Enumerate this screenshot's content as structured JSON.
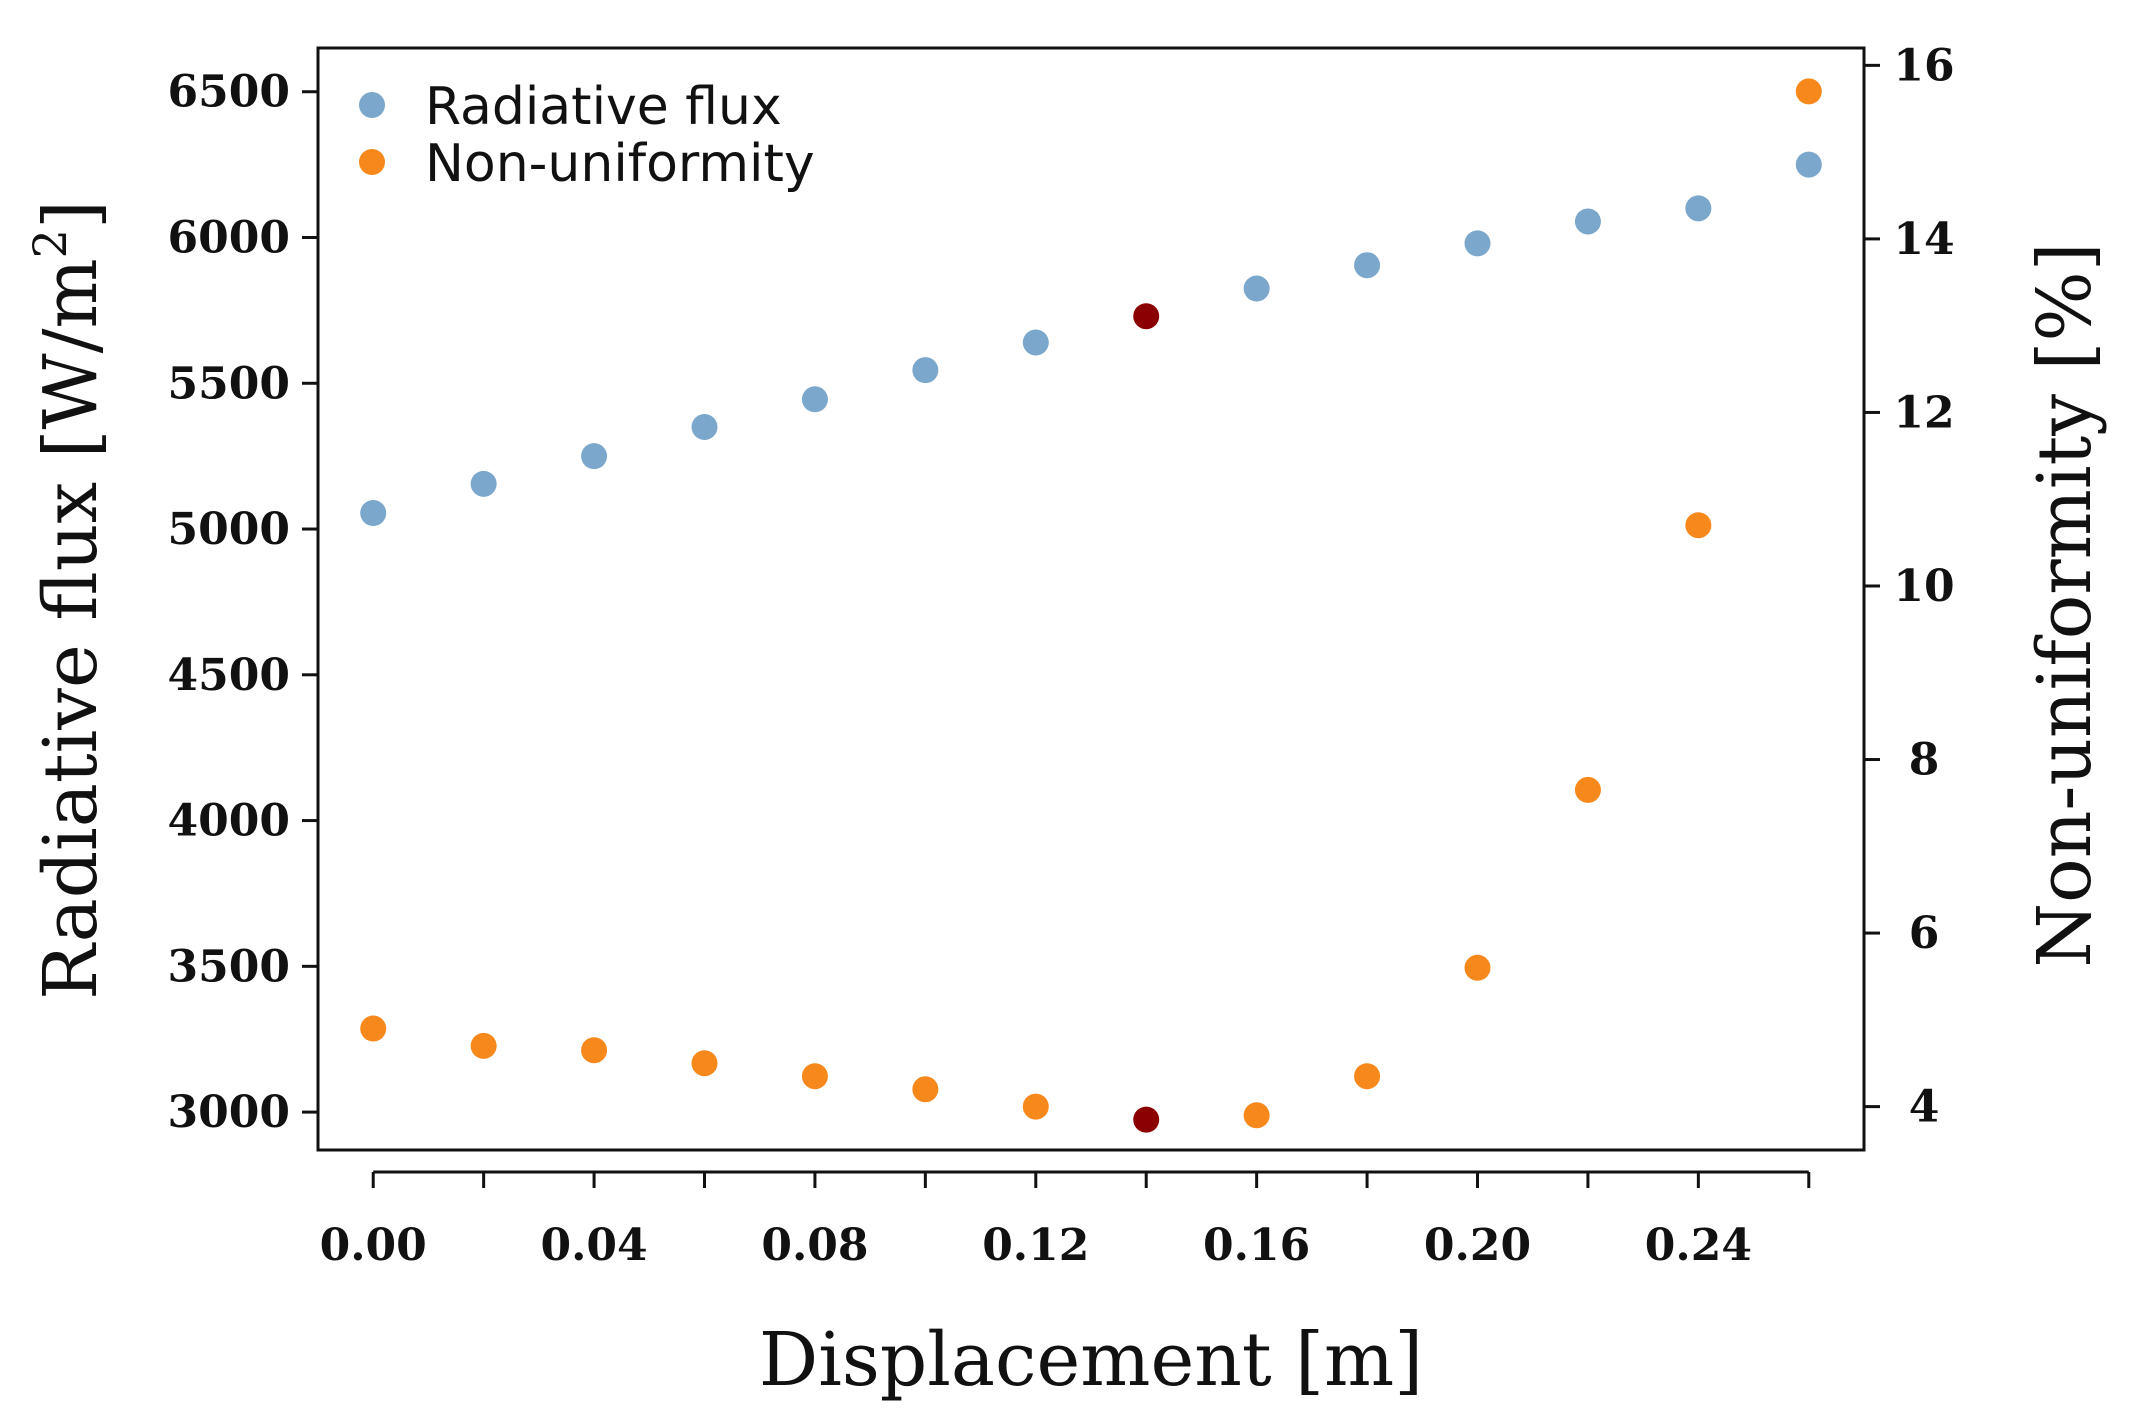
{
  "chart_data": {
    "type": "scatter",
    "title": "",
    "xlabel": "Displacement [m]",
    "ylabel": "Radiative flux [W/m",
    "ylabel_superscript": "2",
    "ylabel_suffix": "]",
    "y2label": "Non-uniformity [%]",
    "x_ticks": [
      "0.00",
      "0.04",
      "0.08",
      "0.12",
      "0.16",
      "0.20",
      "0.24"
    ],
    "y_ticks": [
      "3000",
      "3500",
      "4000",
      "4500",
      "5000",
      "5500",
      "6000",
      "6500"
    ],
    "y2_ticks": [
      "4",
      "6",
      "8",
      "10",
      "12",
      "14",
      "16"
    ],
    "xlim": [
      -0.01,
      0.27
    ],
    "ylim": [
      2870,
      6650
    ],
    "y2lim": [
      3.5,
      16.2
    ],
    "x": [
      0.0,
      0.02,
      0.04,
      0.06,
      0.08,
      0.1,
      0.12,
      0.14,
      0.16,
      0.18,
      0.2,
      0.22,
      0.24,
      0.26
    ],
    "series": [
      {
        "name": "Radiative flux",
        "axis": "left",
        "color": "#7aa7cb",
        "values": [
          5055,
          5155,
          5250,
          5350,
          5445,
          5545,
          5640,
          5730,
          5825,
          5905,
          5980,
          6055,
          6100,
          6250
        ]
      },
      {
        "name": "Non-uniformity",
        "axis": "right",
        "color": "#f7881c",
        "values": [
          4.9,
          4.7,
          4.65,
          4.5,
          4.35,
          4.2,
          4.0,
          3.85,
          3.9,
          4.35,
          5.6,
          7.65,
          10.7,
          15.7
        ]
      }
    ],
    "highlight": {
      "x": 0.14,
      "color": "#8b0000"
    },
    "legend": {
      "position": "top-left",
      "entries": [
        "Radiative flux",
        "Non-uniformity"
      ]
    },
    "grid": false
  }
}
